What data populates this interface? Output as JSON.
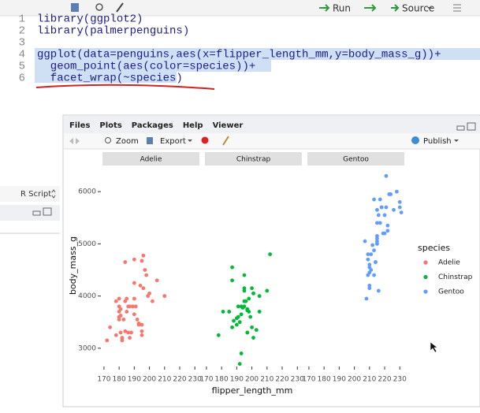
{
  "editor": {
    "toolbar": {
      "run": "Run",
      "source": "Source"
    },
    "lines": [
      {
        "number": 1,
        "code": "library(ggplot2)"
      },
      {
        "number": 2,
        "code": "library(palmerpenguins)"
      },
      {
        "number": 3
      },
      {
        "number": 4,
        "code": "ggplot(data=penguins,aes(x=flipper_length_mm,y=body_mass_g))+"
      },
      {
        "number": 5,
        "code": "  geom_point(aes(color=species))+"
      },
      {
        "number": 6,
        "code": "  facet_wrap(~species)"
      }
    ]
  },
  "left_panel": {
    "file_type": "R Script"
  },
  "pane": {
    "tabs": [
      "Files",
      "Plots",
      "Packages",
      "Help",
      "Viewer"
    ],
    "toolbar": {
      "zoom": "Zoom",
      "export": "Export",
      "publish": "Publish"
    }
  },
  "chart_data": {
    "type": "scatter",
    "x_label": "flipper_length_mm",
    "y_label": "body_mass_g",
    "legend_title": "species",
    "xlim": [
      169,
      233
    ],
    "ylim": [
      2650,
      6500
    ],
    "xticks": [
      170,
      180,
      190,
      200,
      210,
      220,
      230
    ],
    "yticks": [
      3000,
      4000,
      5000,
      6000
    ],
    "grid": false,
    "series": [
      {
        "name": "Adelie",
        "color": "#F8766D",
        "x": [
          181,
          186,
          195,
          193,
          190,
          181,
          195,
          193,
          190,
          186,
          180,
          182,
          191,
          198,
          185,
          195,
          197,
          184,
          194,
          174,
          180,
          189,
          185,
          180,
          187,
          183,
          187,
          172,
          180,
          178,
          178,
          188,
          184,
          195,
          196,
          190,
          180,
          181,
          184,
          182,
          190,
          200,
          205,
          210,
          196,
          199,
          192,
          202
        ],
        "values": [
          3750,
          3800,
          3250,
          3450,
          3650,
          3625,
          4675,
          3475,
          4250,
          3300,
          3700,
          3200,
          3800,
          4400,
          3700,
          3450,
          4500,
          3325,
          4200,
          3400,
          3600,
          3800,
          3950,
          3800,
          3800,
          3550,
          3200,
          3150,
          3950,
          3250,
          3900,
          3300,
          3900,
          3325,
          4150,
          3950,
          3550,
          3300,
          4650,
          3150,
          4700,
          4050,
          4300,
          4000,
          4775,
          4000,
          3550,
          3900
        ]
      },
      {
        "name": "Chinstrap",
        "color": "#00BA38",
        "x": [
          192,
          196,
          193,
          188,
          197,
          198,
          178,
          197,
          195,
          198,
          193,
          194,
          185,
          201,
          190,
          201,
          197,
          181,
          190,
          195,
          191,
          187,
          193,
          195,
          197,
          200,
          200,
          191,
          205,
          187,
          201,
          187,
          203,
          195,
          199,
          195,
          210,
          192,
          205,
          212
        ],
        "values": [
          3500,
          3900,
          3650,
          3525,
          3725,
          3950,
          3250,
          3750,
          4150,
          3700,
          3800,
          3775,
          3700,
          4050,
          3575,
          4050,
          3300,
          3700,
          3450,
          4400,
          3600,
          3400,
          2900,
          3800,
          3300,
          4150,
          3400,
          3800,
          3700,
          4550,
          3200,
          4300,
          3350,
          4100,
          3600,
          3900,
          4100,
          2700,
          4000,
          4800
        ]
      },
      {
        "name": "Gentoo",
        "color": "#619CFF",
        "x": [
          211,
          230,
          210,
          218,
          215,
          210,
          211,
          219,
          209,
          215,
          214,
          216,
          214,
          213,
          210,
          217,
          210,
          221,
          209,
          222,
          218,
          215,
          213,
          215,
          215,
          215,
          216,
          215,
          210,
          220,
          222,
          209,
          207,
          230,
          220,
          221,
          212,
          217,
          213,
          223,
          208,
          231,
          224,
          228,
          226
        ],
        "values": [
          4500,
          5700,
          4450,
          5700,
          5400,
          4550,
          4800,
          5200,
          4400,
          5150,
          4650,
          5550,
          4650,
          5850,
          4200,
          5850,
          4150,
          6300,
          4800,
          5350,
          5700,
          5000,
          4400,
          5050,
          5000,
          5100,
          4100,
          5650,
          4600,
          5550,
          5250,
          4700,
          5050,
          5800,
          5200,
          5700,
          4975,
          5400,
          4875,
          5950,
          3950,
          5600,
          5950,
          6000,
          5650
        ]
      }
    ]
  }
}
